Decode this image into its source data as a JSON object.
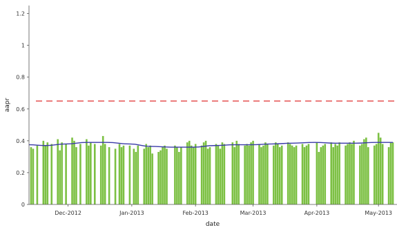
{
  "chart_data": {
    "type": "bar",
    "xlabel": "date",
    "ylabel": "aapr",
    "ylim": [
      0,
      1.25
    ],
    "y_ticks": [
      "0",
      "0.2",
      "0.4",
      "0.6",
      "0.8",
      "1",
      "1.2"
    ],
    "x_ticks": [
      "Dec-2012",
      "Jan-2013",
      "Feb-2013",
      "Mar-2013",
      "Apr-2013",
      "May-2013"
    ],
    "x_tick_dates": [
      "2012-12-01",
      "2013-01-01",
      "2013-02-01",
      "2013-03-01",
      "2013-04-01",
      "2013-05-01"
    ],
    "x_range": [
      "2012-11-12",
      "2013-05-10"
    ],
    "grid": false,
    "legend": "none",
    "colors": {
      "bars": "#7cc043",
      "trend": "#3a3aa8",
      "threshold": "#e03030"
    },
    "threshold": 0.65,
    "series": [
      {
        "type": "bar",
        "dates": [
          "2012-11-13",
          "2012-11-14",
          "2012-11-16",
          "2012-11-19",
          "2012-11-20",
          "2012-11-21",
          "2012-11-23",
          "2012-11-26",
          "2012-11-27",
          "2012-11-28",
          "2012-11-30",
          "2012-12-03",
          "2012-12-04",
          "2012-12-05",
          "2012-12-07",
          "2012-12-10",
          "2012-12-11",
          "2012-12-12",
          "2012-12-14",
          "2012-12-17",
          "2012-12-18",
          "2012-12-19",
          "2012-12-21",
          "2012-12-24",
          "2012-12-26",
          "2012-12-27",
          "2012-12-28",
          "2012-12-31",
          "2013-01-02",
          "2013-01-03",
          "2013-01-04",
          "2013-01-07",
          "2013-01-08",
          "2013-01-09",
          "2013-01-10",
          "2013-01-11",
          "2013-01-14",
          "2013-01-15",
          "2013-01-16",
          "2013-01-17",
          "2013-01-18",
          "2013-01-22",
          "2013-01-23",
          "2013-01-24",
          "2013-01-25",
          "2013-01-28",
          "2013-01-29",
          "2013-01-30",
          "2013-01-31",
          "2013-02-01",
          "2013-02-04",
          "2013-02-05",
          "2013-02-06",
          "2013-02-07",
          "2013-02-08",
          "2013-02-11",
          "2013-02-12",
          "2013-02-13",
          "2013-02-14",
          "2013-02-15",
          "2013-02-19",
          "2013-02-20",
          "2013-02-21",
          "2013-02-22",
          "2013-02-25",
          "2013-02-26",
          "2013-02-27",
          "2013-02-28",
          "2013-03-01",
          "2013-03-04",
          "2013-03-05",
          "2013-03-06",
          "2013-03-07",
          "2013-03-08",
          "2013-03-11",
          "2013-03-12",
          "2013-03-13",
          "2013-03-14",
          "2013-03-15",
          "2013-03-18",
          "2013-03-19",
          "2013-03-20",
          "2013-03-21",
          "2013-03-22",
          "2013-03-25",
          "2013-03-26",
          "2013-03-27",
          "2013-03-28",
          "2013-04-01",
          "2013-04-02",
          "2013-04-03",
          "2013-04-04",
          "2013-04-05",
          "2013-04-08",
          "2013-04-09",
          "2013-04-10",
          "2013-04-11",
          "2013-04-12",
          "2013-04-15",
          "2013-04-16",
          "2013-04-17",
          "2013-04-18",
          "2013-04-19",
          "2013-04-22",
          "2013-04-23",
          "2013-04-24",
          "2013-04-25",
          "2013-04-26",
          "2013-04-29",
          "2013-04-30",
          "2013-05-01",
          "2013-05-02",
          "2013-05-03",
          "2013-05-06",
          "2013-05-07",
          "2013-05-08"
        ],
        "values": [
          0.36,
          0.35,
          0.37,
          0.4,
          0.37,
          0.39,
          0.38,
          0.41,
          0.34,
          0.39,
          0.38,
          0.42,
          0.4,
          0.36,
          0.38,
          0.41,
          0.37,
          0.39,
          0.38,
          0.37,
          0.43,
          0.38,
          0.36,
          0.35,
          0.38,
          0.36,
          0.37,
          0.37,
          0.35,
          0.33,
          0.37,
          0.35,
          0.38,
          0.36,
          0.37,
          0.32,
          0.33,
          0.34,
          0.36,
          0.37,
          0.35,
          0.37,
          0.36,
          0.33,
          0.36,
          0.39,
          0.4,
          0.37,
          0.36,
          0.38,
          0.37,
          0.39,
          0.4,
          0.35,
          0.36,
          0.38,
          0.37,
          0.35,
          0.39,
          0.38,
          0.39,
          0.36,
          0.4,
          0.38,
          0.37,
          0.38,
          0.37,
          0.39,
          0.4,
          0.38,
          0.36,
          0.37,
          0.39,
          0.38,
          0.37,
          0.39,
          0.38,
          0.36,
          0.37,
          0.39,
          0.38,
          0.37,
          0.36,
          0.37,
          0.38,
          0.36,
          0.37,
          0.38,
          0.39,
          0.33,
          0.36,
          0.37,
          0.38,
          0.39,
          0.36,
          0.38,
          0.37,
          0.39,
          0.37,
          0.38,
          0.39,
          0.38,
          0.4,
          0.37,
          0.38,
          0.41,
          0.42,
          0.36,
          0.37,
          0.38,
          0.45,
          0.42,
          0.38,
          0.36,
          0.39,
          0.39
        ]
      },
      {
        "type": "line",
        "dates": [
          "2012-11-12",
          "2012-11-20",
          "2012-11-30",
          "2012-12-10",
          "2012-12-20",
          "2012-12-31",
          "2013-01-10",
          "2013-01-20",
          "2013-01-31",
          "2013-02-10",
          "2013-02-20",
          "2013-02-28",
          "2013-03-10",
          "2013-03-20",
          "2013-03-31",
          "2013-04-10",
          "2013-04-20",
          "2013-04-30",
          "2013-05-08"
        ],
        "values": [
          0.375,
          0.37,
          0.38,
          0.39,
          0.39,
          0.38,
          0.365,
          0.36,
          0.36,
          0.37,
          0.375,
          0.375,
          0.38,
          0.385,
          0.39,
          0.385,
          0.385,
          0.39,
          0.39
        ]
      }
    ]
  }
}
